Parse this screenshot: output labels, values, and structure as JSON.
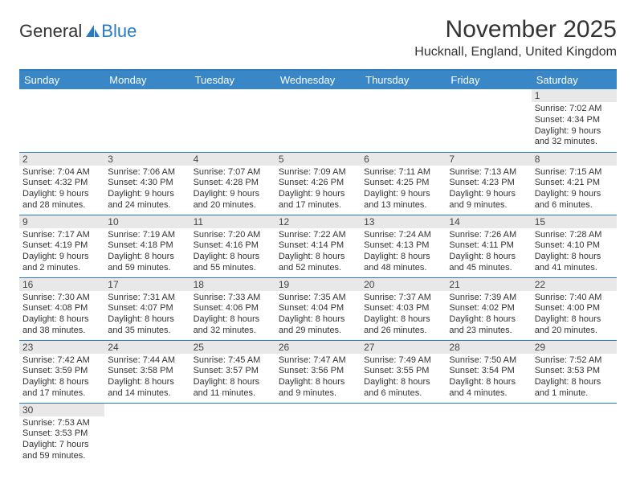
{
  "brand": {
    "text1": "General",
    "text2": "Blue",
    "icon_color": "#2a7ac2"
  },
  "title": "November 2025",
  "location": "Hucknall, England, United Kingdom",
  "colors": {
    "header_bg": "#3a87c8",
    "rule": "#2a7ac2",
    "daynum_bg": "#e8e8e8"
  },
  "weekdays": [
    "Sunday",
    "Monday",
    "Tuesday",
    "Wednesday",
    "Thursday",
    "Friday",
    "Saturday"
  ],
  "weeks": [
    [
      {
        "n": "",
        "lines": []
      },
      {
        "n": "",
        "lines": []
      },
      {
        "n": "",
        "lines": []
      },
      {
        "n": "",
        "lines": []
      },
      {
        "n": "",
        "lines": []
      },
      {
        "n": "",
        "lines": []
      },
      {
        "n": "1",
        "lines": [
          "Sunrise: 7:02 AM",
          "Sunset: 4:34 PM",
          "Daylight: 9 hours",
          "and 32 minutes."
        ]
      }
    ],
    [
      {
        "n": "2",
        "lines": [
          "Sunrise: 7:04 AM",
          "Sunset: 4:32 PM",
          "Daylight: 9 hours",
          "and 28 minutes."
        ]
      },
      {
        "n": "3",
        "lines": [
          "Sunrise: 7:06 AM",
          "Sunset: 4:30 PM",
          "Daylight: 9 hours",
          "and 24 minutes."
        ]
      },
      {
        "n": "4",
        "lines": [
          "Sunrise: 7:07 AM",
          "Sunset: 4:28 PM",
          "Daylight: 9 hours",
          "and 20 minutes."
        ]
      },
      {
        "n": "5",
        "lines": [
          "Sunrise: 7:09 AM",
          "Sunset: 4:26 PM",
          "Daylight: 9 hours",
          "and 17 minutes."
        ]
      },
      {
        "n": "6",
        "lines": [
          "Sunrise: 7:11 AM",
          "Sunset: 4:25 PM",
          "Daylight: 9 hours",
          "and 13 minutes."
        ]
      },
      {
        "n": "7",
        "lines": [
          "Sunrise: 7:13 AM",
          "Sunset: 4:23 PM",
          "Daylight: 9 hours",
          "and 9 minutes."
        ]
      },
      {
        "n": "8",
        "lines": [
          "Sunrise: 7:15 AM",
          "Sunset: 4:21 PM",
          "Daylight: 9 hours",
          "and 6 minutes."
        ]
      }
    ],
    [
      {
        "n": "9",
        "lines": [
          "Sunrise: 7:17 AM",
          "Sunset: 4:19 PM",
          "Daylight: 9 hours",
          "and 2 minutes."
        ]
      },
      {
        "n": "10",
        "lines": [
          "Sunrise: 7:19 AM",
          "Sunset: 4:18 PM",
          "Daylight: 8 hours",
          "and 59 minutes."
        ]
      },
      {
        "n": "11",
        "lines": [
          "Sunrise: 7:20 AM",
          "Sunset: 4:16 PM",
          "Daylight: 8 hours",
          "and 55 minutes."
        ]
      },
      {
        "n": "12",
        "lines": [
          "Sunrise: 7:22 AM",
          "Sunset: 4:14 PM",
          "Daylight: 8 hours",
          "and 52 minutes."
        ]
      },
      {
        "n": "13",
        "lines": [
          "Sunrise: 7:24 AM",
          "Sunset: 4:13 PM",
          "Daylight: 8 hours",
          "and 48 minutes."
        ]
      },
      {
        "n": "14",
        "lines": [
          "Sunrise: 7:26 AM",
          "Sunset: 4:11 PM",
          "Daylight: 8 hours",
          "and 45 minutes."
        ]
      },
      {
        "n": "15",
        "lines": [
          "Sunrise: 7:28 AM",
          "Sunset: 4:10 PM",
          "Daylight: 8 hours",
          "and 41 minutes."
        ]
      }
    ],
    [
      {
        "n": "16",
        "lines": [
          "Sunrise: 7:30 AM",
          "Sunset: 4:08 PM",
          "Daylight: 8 hours",
          "and 38 minutes."
        ]
      },
      {
        "n": "17",
        "lines": [
          "Sunrise: 7:31 AM",
          "Sunset: 4:07 PM",
          "Daylight: 8 hours",
          "and 35 minutes."
        ]
      },
      {
        "n": "18",
        "lines": [
          "Sunrise: 7:33 AM",
          "Sunset: 4:06 PM",
          "Daylight: 8 hours",
          "and 32 minutes."
        ]
      },
      {
        "n": "19",
        "lines": [
          "Sunrise: 7:35 AM",
          "Sunset: 4:04 PM",
          "Daylight: 8 hours",
          "and 29 minutes."
        ]
      },
      {
        "n": "20",
        "lines": [
          "Sunrise: 7:37 AM",
          "Sunset: 4:03 PM",
          "Daylight: 8 hours",
          "and 26 minutes."
        ]
      },
      {
        "n": "21",
        "lines": [
          "Sunrise: 7:39 AM",
          "Sunset: 4:02 PM",
          "Daylight: 8 hours",
          "and 23 minutes."
        ]
      },
      {
        "n": "22",
        "lines": [
          "Sunrise: 7:40 AM",
          "Sunset: 4:00 PM",
          "Daylight: 8 hours",
          "and 20 minutes."
        ]
      }
    ],
    [
      {
        "n": "23",
        "lines": [
          "Sunrise: 7:42 AM",
          "Sunset: 3:59 PM",
          "Daylight: 8 hours",
          "and 17 minutes."
        ]
      },
      {
        "n": "24",
        "lines": [
          "Sunrise: 7:44 AM",
          "Sunset: 3:58 PM",
          "Daylight: 8 hours",
          "and 14 minutes."
        ]
      },
      {
        "n": "25",
        "lines": [
          "Sunrise: 7:45 AM",
          "Sunset: 3:57 PM",
          "Daylight: 8 hours",
          "and 11 minutes."
        ]
      },
      {
        "n": "26",
        "lines": [
          "Sunrise: 7:47 AM",
          "Sunset: 3:56 PM",
          "Daylight: 8 hours",
          "and 9 minutes."
        ]
      },
      {
        "n": "27",
        "lines": [
          "Sunrise: 7:49 AM",
          "Sunset: 3:55 PM",
          "Daylight: 8 hours",
          "and 6 minutes."
        ]
      },
      {
        "n": "28",
        "lines": [
          "Sunrise: 7:50 AM",
          "Sunset: 3:54 PM",
          "Daylight: 8 hours",
          "and 4 minutes."
        ]
      },
      {
        "n": "29",
        "lines": [
          "Sunrise: 7:52 AM",
          "Sunset: 3:53 PM",
          "Daylight: 8 hours",
          "and 1 minute."
        ]
      }
    ],
    [
      {
        "n": "30",
        "lines": [
          "Sunrise: 7:53 AM",
          "Sunset: 3:53 PM",
          "Daylight: 7 hours",
          "and 59 minutes."
        ]
      },
      {
        "n": "",
        "lines": []
      },
      {
        "n": "",
        "lines": []
      },
      {
        "n": "",
        "lines": []
      },
      {
        "n": "",
        "lines": []
      },
      {
        "n": "",
        "lines": []
      },
      {
        "n": "",
        "lines": []
      }
    ]
  ]
}
